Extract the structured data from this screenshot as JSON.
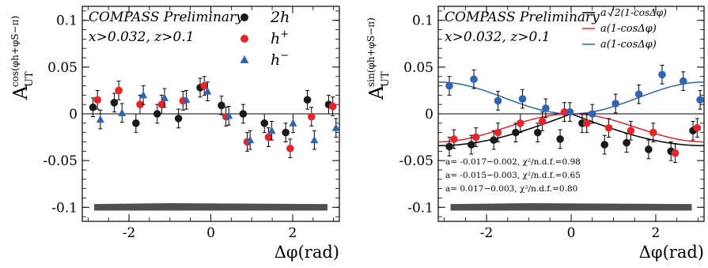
{
  "chart_data": [
    {
      "type": "scatter",
      "ylabel_main": "A",
      "ylabel_sub": "UT",
      "ylabel_sup": "cos(φh+φS−π)",
      "xlabel": "Δφ(rad)",
      "xlim": [
        -3.1416,
        3.1416
      ],
      "ylim": [
        -0.115,
        0.115
      ],
      "xticks": [
        -2,
        0,
        2
      ],
      "yticks": [
        -0.1,
        -0.05,
        0,
        0.05,
        0.1
      ],
      "ytick_labels": [
        "-0.1",
        "-0.05",
        "0",
        "0.05",
        "0.1"
      ],
      "xtick_labels": [
        "-2",
        "0",
        "2"
      ],
      "annotation_title": "COMPASS Preliminary",
      "annotation_cuts": "x>0.032, z>0.1",
      "band": {
        "color": "#505050",
        "ylow": -0.1035,
        "yhigh": -0.0965
      },
      "series": [
        {
          "name": "2h",
          "marker": "circle",
          "color": "#1a1a1a",
          "x": [
            -2.88,
            -2.36,
            -1.83,
            -1.31,
            -0.79,
            -0.26,
            0.26,
            0.79,
            1.31,
            1.83,
            2.36,
            2.88
          ],
          "y": [
            0.007,
            0.012,
            -0.01,
            0.0,
            -0.005,
            0.028,
            0.009,
            0.0,
            -0.01,
            -0.02,
            0.015,
            0.01
          ],
          "err": [
            0.01,
            0.01,
            0.01,
            0.01,
            0.01,
            0.01,
            0.01,
            0.01,
            0.01,
            0.01,
            0.01,
            0.01
          ]
        },
        {
          "name": "h+",
          "marker": "circle",
          "color": "#e8242a",
          "x": [
            -2.77,
            -2.25,
            -1.73,
            -1.2,
            -0.68,
            -0.16,
            0.37,
            0.89,
            1.41,
            1.94,
            2.46,
            2.98
          ],
          "y": [
            0.015,
            0.025,
            0.01,
            0.01,
            0.014,
            0.03,
            -0.003,
            -0.03,
            -0.025,
            -0.037,
            -0.003,
            0.008
          ],
          "err": [
            0.01,
            0.01,
            0.01,
            0.01,
            0.01,
            0.01,
            0.01,
            0.01,
            0.01,
            0.01,
            0.01,
            0.01
          ]
        },
        {
          "name": "h−",
          "marker": "triangle",
          "color": "#2e64b0",
          "x": [
            -2.7,
            -2.17,
            -1.65,
            -1.13,
            -0.6,
            -0.08,
            0.44,
            0.96,
            1.49,
            2.01,
            2.53,
            3.06
          ],
          "y": [
            -0.006,
            0.001,
            0.02,
            0.017,
            0.015,
            0.024,
            -0.002,
            -0.028,
            -0.018,
            -0.01,
            -0.028,
            -0.015
          ],
          "err": [
            0.01,
            0.01,
            0.01,
            0.01,
            0.01,
            0.01,
            0.01,
            0.01,
            0.01,
            0.01,
            0.01,
            0.01
          ]
        }
      ]
    },
    {
      "type": "scatter",
      "ylabel_main": "A",
      "ylabel_sub": "UT",
      "ylabel_sup": "sin(φh+φS−π)",
      "xlabel": "Δφ(rad)",
      "xlim": [
        -3.1416,
        3.1416
      ],
      "ylim": [
        -0.115,
        0.115
      ],
      "xticks": [
        -2,
        0,
        2
      ],
      "yticks": [
        -0.1,
        -0.05,
        0,
        0.05,
        0.1
      ],
      "ytick_labels": [
        "-0.1",
        "-0.05",
        "0",
        "0.05",
        "0.1"
      ],
      "xtick_labels": [
        "-2",
        "0",
        "2"
      ],
      "annotation_title": "COMPASS Preliminary",
      "annotation_cuts": "x>0.032, z>0.1",
      "band": {
        "color": "#505050",
        "ylow": -0.1035,
        "yhigh": -0.0965
      },
      "legend": [
        {
          "label_prefix": "a",
          "label_radicand": "2(1-cosΔφ)",
          "color": "#000000",
          "sqrt": true
        },
        {
          "label": "a(1-cosΔφ)",
          "color": "#e8242a"
        },
        {
          "label": "a(1-cosΔφ)",
          "color": "#2e64b0"
        }
      ],
      "fit_results": [
        {
          "text": "a= -0.017−0.002, χ²/n.d.f.=0.98",
          "color": "#000000",
          "a": -0.017,
          "form": "sqrt"
        },
        {
          "text": "a= -0.015−0.003, χ²/n.d.f.=0.65",
          "color": "#e8242a",
          "a": -0.015,
          "form": "lin"
        },
        {
          "text": "a= 0.017−0.003, χ²/n.d.f.=0.80",
          "color": "#2e64b0",
          "a": 0.017,
          "form": "lin"
        }
      ],
      "series": [
        {
          "name": "black",
          "marker": "circle",
          "color": "#1a1a1a",
          "x": [
            -2.88,
            -2.36,
            -1.83,
            -1.31,
            -0.79,
            -0.26,
            0.26,
            0.79,
            1.31,
            1.83,
            2.36,
            2.88
          ],
          "y": [
            -0.035,
            -0.033,
            -0.028,
            -0.02,
            -0.02,
            -0.027,
            -0.01,
            -0.033,
            -0.031,
            -0.038,
            -0.04,
            -0.018
          ],
          "err": [
            0.01,
            0.01,
            0.01,
            0.01,
            0.01,
            0.01,
            0.01,
            0.01,
            0.01,
            0.01,
            0.01,
            0.01
          ]
        },
        {
          "name": "red",
          "marker": "circle",
          "color": "#e8242a",
          "x": [
            -2.77,
            -2.25,
            -1.73,
            -1.2,
            -0.68,
            -0.16,
            0.37,
            0.89,
            1.41,
            1.94,
            2.46,
            2.98
          ],
          "y": [
            -0.027,
            -0.025,
            -0.02,
            -0.01,
            -0.008,
            0.002,
            -0.01,
            -0.015,
            -0.018,
            -0.02,
            -0.042,
            -0.015
          ],
          "err": [
            0.01,
            0.01,
            0.01,
            0.01,
            0.01,
            0.01,
            0.01,
            0.01,
            0.01,
            0.01,
            0.01,
            0.01
          ]
        },
        {
          "name": "blue",
          "marker": "circle",
          "color": "#2e64b0",
          "x": [
            -2.88,
            -2.3,
            -1.73,
            -1.15,
            -0.6,
            -0.03,
            0.5,
            1.05,
            1.6,
            2.15,
            2.65,
            3.05
          ],
          "y": [
            0.03,
            0.037,
            0.014,
            0.016,
            0.006,
            0.002,
            0.0,
            0.011,
            0.021,
            0.042,
            0.035,
            0.015
          ],
          "err": [
            0.01,
            0.01,
            0.01,
            0.01,
            0.01,
            0.01,
            0.01,
            0.01,
            0.01,
            0.01,
            0.01,
            0.01
          ]
        }
      ]
    }
  ]
}
